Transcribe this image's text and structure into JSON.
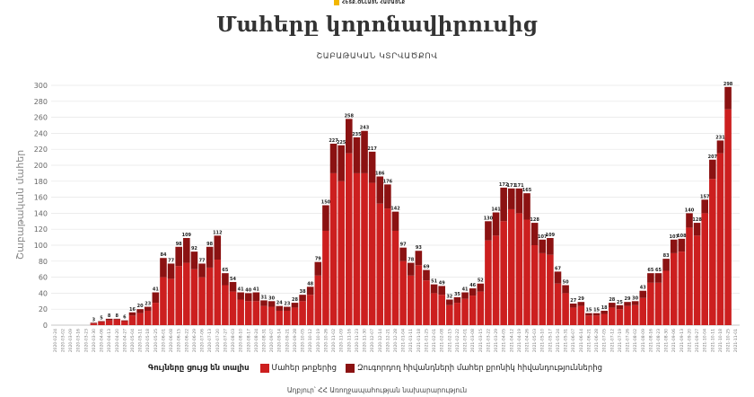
{
  "header": {
    "logo_icon": "publisher-logo-icon",
    "logo_text": "ՀԵՏՔ.ՕՆԼԱՅՆ ՀԱՄԱՅՆՔ",
    "title": "Մահերը կորոնավիրուսից",
    "subtitle": "ՇԱԲԱԹԱԿԱՆ ԿՏՐՎԱԾՔՈՎ"
  },
  "legend": {
    "label": "Գույները ցույց են տալիս",
    "items": [
      {
        "name": "Մահեր թոքերից",
        "color": "#cc1f1f"
      },
      {
        "name": "Զուգորդող հիվանդների մահեր քրոնիկ հիվանդություններից",
        "color": "#8b1212"
      }
    ]
  },
  "source": "Աղբյուր՝ ՀՀ Առողջապահության նախարարություն",
  "chart_data": {
    "type": "bar",
    "stacked": true,
    "title": "Մահերը կորոնավիրուսից",
    "subtitle": "ՇԱԲԱԹԱԿԱՆ ԿՏՐՎԱԾՔՈՎ",
    "ylabel": "Շաբաթական մահեր",
    "xlabel": "",
    "ylim": [
      0,
      300
    ],
    "yticks": [
      0,
      20,
      40,
      60,
      80,
      100,
      120,
      140,
      160,
      180,
      200,
      220,
      240,
      260,
      280,
      300
    ],
    "grid": true,
    "legend_position": "bottom",
    "colors": {
      "primary": "#cc1f1f",
      "secondary": "#8b1212",
      "grid": "#e6e6e6",
      "axis": "#bbbbbb"
    },
    "categories": [
      "2020-02-24",
      "2020-03-02",
      "2020-03-09",
      "2020-03-16",
      "2020-03-23",
      "2020-03-30",
      "2020-04-06",
      "2020-04-13",
      "2020-04-20",
      "2020-04-27",
      "2020-05-04",
      "2020-05-11",
      "2020-05-18",
      "2020-05-25",
      "2020-06-01",
      "2020-06-08",
      "2020-06-15",
      "2020-06-22",
      "2020-06-29",
      "2020-07-06",
      "2020-07-13",
      "2020-07-20",
      "2020-07-27",
      "2020-08-03",
      "2020-08-10",
      "2020-08-17",
      "2020-08-24",
      "2020-08-31",
      "2020-09-07",
      "2020-09-14",
      "2020-09-21",
      "2020-09-28",
      "2020-10-05",
      "2020-10-12",
      "2020-10-19",
      "2020-10-26",
      "2020-11-02",
      "2020-11-09",
      "2020-11-16",
      "2020-11-23",
      "2020-11-30",
      "2020-12-07",
      "2020-12-14",
      "2020-12-21",
      "2020-12-28",
      "2021-01-04",
      "2021-01-11",
      "2021-01-18",
      "2021-01-25",
      "2021-02-01",
      "2021-02-08",
      "2021-02-15",
      "2021-02-22",
      "2021-03-01",
      "2021-03-08",
      "2021-03-15",
      "2021-03-22",
      "2021-03-29",
      "2021-04-05",
      "2021-04-12",
      "2021-04-19",
      "2021-04-26",
      "2021-05-03",
      "2021-05-10",
      "2021-05-17",
      "2021-05-24",
      "2021-05-31",
      "2021-06-07",
      "2021-06-14",
      "2021-06-21",
      "2021-06-28",
      "2021-07-05",
      "2021-07-12",
      "2021-07-19",
      "2021-07-26",
      "2021-08-02",
      "2021-08-09",
      "2021-08-16",
      "2021-08-23",
      "2021-08-30",
      "2021-09-06",
      "2021-09-13",
      "2021-09-20",
      "2021-09-27",
      "2021-10-04",
      "2021-10-11",
      "2021-10-18",
      "2021-10-25",
      "2021-11-01"
    ],
    "totals": [
      0,
      0,
      0,
      0,
      0,
      3,
      5,
      8,
      8,
      6,
      16,
      20,
      23,
      41,
      84,
      77,
      98,
      109,
      92,
      77,
      98,
      112,
      65,
      54,
      41,
      40,
      41,
      31,
      30,
      24,
      23,
      28,
      38,
      48,
      79,
      150,
      227,
      225,
      258,
      235,
      243,
      217,
      186,
      176,
      142,
      97,
      78,
      93,
      69,
      51,
      49,
      32,
      35,
      41,
      46,
      52,
      130,
      141,
      172,
      171,
      171,
      165,
      128,
      107,
      109,
      67,
      50,
      27,
      29,
      15,
      15,
      18,
      28,
      25,
      29,
      30,
      43,
      65,
      65,
      83,
      107,
      108,
      140,
      128,
      157,
      207,
      231,
      298,
      0
    ],
    "series": [
      {
        "name": "Մահեր թոքերից",
        "values": [
          0,
          0,
          0,
          0,
          0,
          2,
          4,
          6,
          7,
          5,
          12,
          15,
          18,
          28,
          60,
          58,
          74,
          78,
          70,
          60,
          72,
          82,
          50,
          42,
          32,
          30,
          30,
          24,
          23,
          18,
          18,
          22,
          30,
          38,
          62,
          118,
          190,
          180,
          215,
          190,
          190,
          178,
          152,
          146,
          118,
          80,
          62,
          75,
          56,
          40,
          38,
          25,
          28,
          33,
          37,
          42,
          106,
          112,
          130,
          145,
          140,
          132,
          100,
          90,
          88,
          52,
          40,
          22,
          24,
          12,
          12,
          14,
          22,
          20,
          24,
          25,
          34,
          53,
          53,
          68,
          90,
          92,
          122,
          112,
          140,
          183,
          215,
          270,
          0
        ]
      },
      {
        "name": "Զուգորդող հիվանդների մահեր քրոնիկ հիվանդություններից",
        "values": [
          0,
          0,
          0,
          0,
          0,
          1,
          1,
          2,
          1,
          1,
          4,
          5,
          5,
          13,
          24,
          19,
          24,
          31,
          22,
          17,
          26,
          30,
          15,
          12,
          9,
          10,
          11,
          7,
          7,
          6,
          5,
          6,
          8,
          10,
          17,
          32,
          37,
          45,
          43,
          45,
          53,
          39,
          34,
          30,
          24,
          17,
          16,
          18,
          13,
          11,
          11,
          7,
          7,
          8,
          9,
          10,
          24,
          29,
          42,
          26,
          31,
          33,
          28,
          17,
          21,
          15,
          10,
          5,
          5,
          3,
          3,
          4,
          6,
          5,
          5,
          5,
          9,
          12,
          12,
          15,
          17,
          16,
          18,
          16,
          17,
          24,
          16,
          28,
          0
        ]
      }
    ]
  }
}
